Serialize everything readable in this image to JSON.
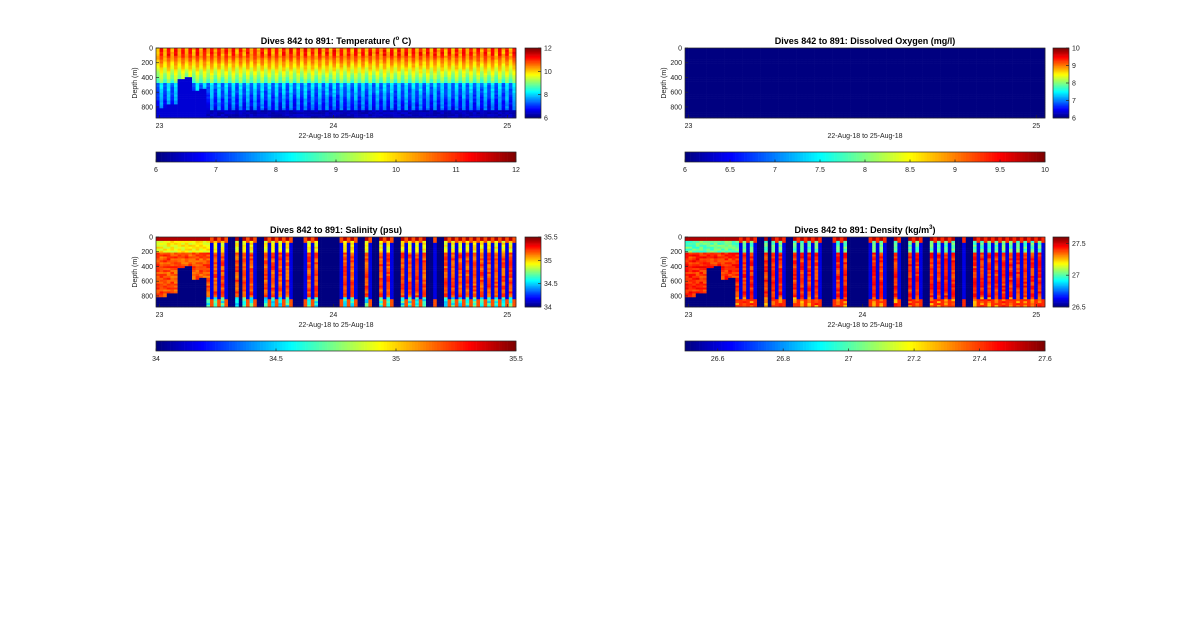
{
  "chart_data": [
    {
      "type": "heatmap",
      "variable": "temperature",
      "title": "Dives 842 to 891: Temperature (",
      "title_sup": "o",
      "title_tail": " C)",
      "xlabel": "22-Aug-18 to 25-Aug-18",
      "ylabel": "Depth (m)",
      "xlim": [
        22.98,
        25.05
      ],
      "ylim": [
        0,
        950
      ],
      "x_ticks": [
        23,
        24,
        25
      ],
      "x_tick_labels": [
        "23",
        "24",
        "25"
      ],
      "y_ticks": [
        0,
        200,
        400,
        600,
        800
      ],
      "y_tick_labels": [
        "0",
        "200",
        "400",
        "600",
        "800"
      ],
      "dives": {
        "first": 842,
        "last": 891
      },
      "pattern": "temperature-gradient",
      "surface_value": 10.6,
      "bottom_value": 7.7,
      "gap_value": 6.5,
      "colorbar_right": {
        "range": [
          6,
          12
        ],
        "ticks": [
          "12",
          "10",
          "8",
          "6"
        ],
        "tick_values": [
          12,
          10,
          8,
          6
        ]
      },
      "colorbar_bottom": {
        "range": [
          6,
          12
        ],
        "ticks": [
          "6",
          "7",
          "8",
          "9",
          "10",
          "11",
          "12"
        ],
        "tick_values": [
          6,
          7,
          8,
          9,
          10,
          11,
          12
        ]
      }
    },
    {
      "type": "heatmap",
      "variable": "dissolved_oxygen",
      "title": "Dives 842 to 891: Dissolved Oxygen (mg/l)",
      "xlabel": "22-Aug-18 to 25-Aug-18",
      "ylabel": "Depth (m)",
      "xlim": [
        22.98,
        25.05
      ],
      "ylim": [
        0,
        950
      ],
      "x_ticks": [
        23,
        25
      ],
      "x_tick_labels": [
        "23",
        "25"
      ],
      "y_ticks": [
        0,
        200,
        400,
        600,
        800
      ],
      "y_tick_labels": [
        "0",
        "200",
        "400",
        "600",
        "800"
      ],
      "dives": {
        "first": 842,
        "last": 891
      },
      "pattern": "uniform",
      "fill_value": 6,
      "colorbar_right": {
        "range": [
          6,
          10
        ],
        "ticks": [
          "10",
          "9",
          "8",
          "7",
          "6"
        ],
        "tick_values": [
          10,
          9,
          8,
          7,
          6
        ]
      },
      "colorbar_bottom": {
        "range": [
          6,
          10
        ],
        "ticks": [
          "6",
          "6.5",
          "7",
          "7.5",
          "8",
          "8.5",
          "9",
          "9.5",
          "10"
        ],
        "tick_values": [
          6,
          6.5,
          7,
          7.5,
          8,
          8.5,
          9,
          9.5,
          10
        ]
      }
    },
    {
      "type": "heatmap",
      "variable": "salinity",
      "title": "Dives 842 to 891: Salinity (psu)",
      "xlabel": "22-Aug-18 to 25-Aug-18",
      "ylabel": "Depth (m)",
      "xlim": [
        22.98,
        25.05
      ],
      "ylim": [
        0,
        950
      ],
      "x_ticks": [
        23,
        24,
        25
      ],
      "x_tick_labels": [
        "23",
        "24",
        "25"
      ],
      "y_ticks": [
        0,
        200,
        400,
        600,
        800
      ],
      "y_tick_labels": [
        "0",
        "200",
        "400",
        "600",
        "800"
      ],
      "dives": {
        "first": 842,
        "last": 891
      },
      "pattern": "salinity-columns",
      "surface_value": 34.85,
      "mid_value": 35.2,
      "bottom_value": 34.6,
      "gap_value": 34.0,
      "colorbar_right": {
        "range": [
          34,
          35.5
        ],
        "ticks": [
          "35.5",
          "35",
          "34.5",
          "34"
        ],
        "tick_values": [
          35.5,
          35,
          34.5,
          34
        ]
      },
      "colorbar_bottom": {
        "range": [
          34,
          35.5
        ],
        "ticks": [
          "34",
          "34.5",
          "35",
          "35.5"
        ],
        "tick_values": [
          34,
          34.5,
          35,
          35.5
        ]
      }
    },
    {
      "type": "heatmap",
      "variable": "density",
      "title": "Dives 842 to 891: Density (kg/m",
      "title_sup": "3",
      "title_tail": ")",
      "xlabel": "22-Aug-18 to 25-Aug-18",
      "ylabel": "Depth (m)",
      "xlim": [
        22.98,
        25.05
      ],
      "ylim": [
        0,
        950
      ],
      "x_ticks": [
        23,
        24,
        25
      ],
      "x_tick_labels": [
        "23",
        "24",
        "25"
      ],
      "y_ticks": [
        0,
        200,
        400,
        600,
        800
      ],
      "y_tick_labels": [
        "0",
        "200",
        "400",
        "600",
        "800"
      ],
      "dives": {
        "first": 842,
        "last": 891
      },
      "pattern": "density-columns",
      "surface_value": 26.95,
      "mid_value": 27.42,
      "bottom_value": 27.35,
      "gap_value": 26.5,
      "colorbar_right": {
        "range": [
          26.5,
          27.6
        ],
        "ticks": [
          "27.5",
          "27",
          "26.5"
        ],
        "tick_values": [
          27.5,
          27,
          26.5
        ]
      },
      "colorbar_bottom": {
        "range": [
          26.5,
          27.6
        ],
        "ticks": [
          "26.6",
          "26.8",
          "27",
          "27.2",
          "27.4",
          "27.6"
        ],
        "tick_values": [
          26.6,
          26.8,
          27,
          27.2,
          27.4,
          27.6
        ]
      }
    }
  ],
  "colormap": "jet",
  "colors": {
    "axis": "#262626",
    "background": "#ffffff",
    "no_data": "#00008f"
  }
}
